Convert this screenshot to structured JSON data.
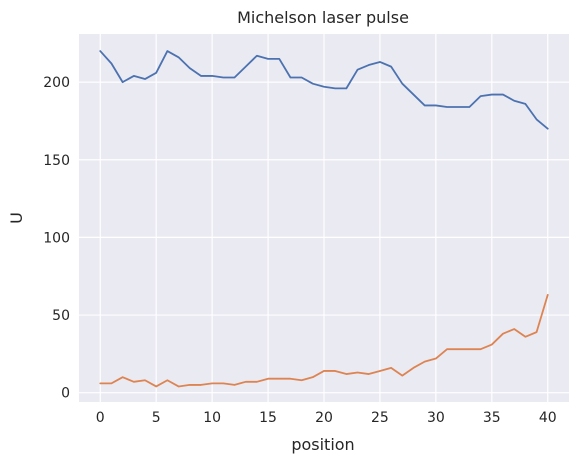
{
  "chart_data": {
    "type": "line",
    "title": "Michelson laser pulse",
    "xlabel": "position",
    "ylabel": "U",
    "xlim": [
      -1.9,
      41.9
    ],
    "ylim": [
      -6,
      231
    ],
    "x_ticks": [
      0,
      5,
      10,
      15,
      20,
      25,
      30,
      35,
      40
    ],
    "y_ticks": [
      0,
      50,
      100,
      150,
      200
    ],
    "grid": true,
    "legend": "none",
    "x": [
      0,
      1,
      2,
      3,
      4,
      5,
      6,
      7,
      8,
      9,
      10,
      11,
      12,
      13,
      14,
      15,
      16,
      17,
      18,
      19,
      20,
      21,
      22,
      23,
      24,
      25,
      26,
      27,
      28,
      29,
      30,
      31,
      32,
      33,
      34,
      35,
      36,
      37,
      38,
      39,
      40
    ],
    "series": [
      {
        "color": "#4c72b0",
        "values": [
          220,
          212,
          200,
          204,
          202,
          206,
          220,
          216,
          209,
          204,
          204,
          203,
          203,
          210,
          217,
          215,
          215,
          203,
          203,
          199,
          197,
          196,
          196,
          208,
          211,
          213,
          210,
          199,
          192,
          185,
          185,
          184,
          184,
          184,
          191,
          192,
          192,
          188,
          186,
          176,
          170
        ]
      },
      {
        "color": "#dd8452",
        "values": [
          6,
          6,
          10,
          7,
          8,
          4,
          8,
          4,
          5,
          5,
          6,
          6,
          5,
          7,
          7,
          9,
          9,
          9,
          8,
          10,
          14,
          14,
          12,
          13,
          12,
          14,
          16,
          11,
          16,
          20,
          22,
          28,
          28,
          28,
          28,
          31,
          38,
          41,
          36,
          39,
          63
        ]
      }
    ],
    "background": "#eaeaf2"
  }
}
